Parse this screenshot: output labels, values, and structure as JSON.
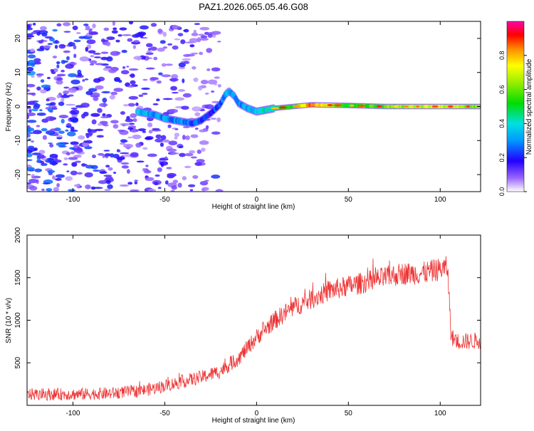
{
  "title": "PAZ1.2026.065.05.46.G08",
  "chart_data": [
    {
      "type": "heatmap",
      "title": "PAZ1.2026.065.05.46.G08",
      "xlabel": "Height of straight line (km)",
      "ylabel": "Frequency (Hz)",
      "xlim": [
        -125,
        122
      ],
      "ylim": [
        -25,
        25
      ],
      "x_ticks": [
        -100,
        -50,
        0,
        50,
        100
      ],
      "y_ticks": [
        -20,
        -10,
        0,
        10,
        20
      ],
      "colorbar": {
        "label": "Normalized spectral amplitude",
        "range": [
          0.0,
          1.0
        ],
        "ticks": [
          0.0,
          0.2,
          0.4,
          0.6,
          0.8
        ],
        "tick_labels": [
          "0.0",
          "0.2",
          "0.4",
          "0.6",
          "0.8"
        ]
      },
      "ridge": {
        "x": [
          -65,
          -55,
          -50,
          -45,
          -40,
          -35,
          -30,
          -25,
          -20,
          -17,
          -15,
          -12,
          -10,
          -5,
          0,
          5,
          10,
          20,
          30,
          50,
          70,
          100,
          122
        ],
        "freq": [
          -1.5,
          -2.5,
          -3.5,
          -4,
          -4.5,
          -5,
          -4,
          -2,
          0.5,
          3.5,
          4.5,
          3,
          1,
          -0.5,
          -1.5,
          -1,
          -0.5,
          0,
          0.5,
          0.3,
          0,
          0,
          0
        ],
        "amp": [
          0.35,
          0.3,
          0.3,
          0.3,
          0.28,
          0.25,
          0.22,
          0.2,
          0.25,
          0.3,
          0.35,
          0.3,
          0.3,
          0.32,
          0.35,
          0.4,
          0.45,
          0.55,
          0.85,
          0.5,
          0.6,
          0.7,
          0.6
        ]
      },
      "noise_region": {
        "x_from": -125,
        "x_to": -20,
        "amp_range": [
          0.05,
          0.3
        ]
      }
    },
    {
      "type": "line",
      "title": "",
      "xlabel": "Height of straight line (km)",
      "ylabel": "SNR (10 * v/v)",
      "xlim": [
        -125,
        122
      ],
      "ylim": [
        0,
        2000
      ],
      "x_ticks": [
        -100,
        -50,
        0,
        50,
        100
      ],
      "y_ticks": [
        500,
        1000,
        1500,
        2000
      ],
      "series": [
        {
          "name": "SNR",
          "color": "#ee3333",
          "trend_x": [
            -125,
            -100,
            -80,
            -60,
            -50,
            -40,
            -30,
            -20,
            -10,
            0,
            10,
            20,
            30,
            40,
            50,
            60,
            70,
            80,
            90,
            100,
            104,
            106,
            110,
            122
          ],
          "trend_y": [
            130,
            130,
            140,
            180,
            230,
            280,
            330,
            400,
            550,
            800,
            1000,
            1150,
            1250,
            1350,
            1400,
            1450,
            1500,
            1550,
            1550,
            1600,
            1620,
            800,
            750,
            760
          ],
          "noise_amplitude": 110
        }
      ]
    }
  ]
}
